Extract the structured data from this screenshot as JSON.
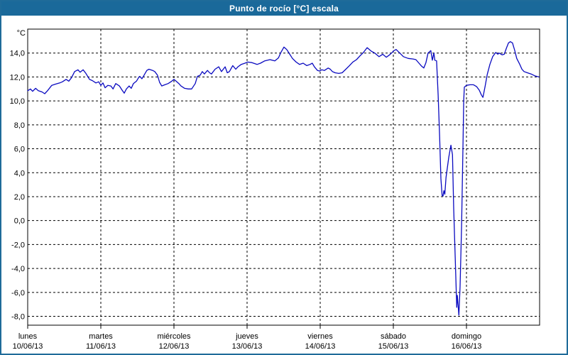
{
  "window": {
    "title": "Punto de rocío [°C] escala"
  },
  "colors": {
    "titlebar_bg": "#1a699a",
    "titlebar_text": "#ffffff",
    "frame": "#1f6b99",
    "plot_bg": "#ffffff",
    "grid": "#000000",
    "axis": "#000000",
    "line": "#0a0ac0",
    "label_text": "#000000"
  },
  "chart_data": {
    "type": "line",
    "title": "Punto de rocío [°C] escala",
    "y_unit_label": "°C",
    "ylabel": "Punto de rocío [°C]",
    "ylim": [
      -8.74,
      16
    ],
    "y_ticks": [
      14,
      12,
      10,
      8,
      6,
      4,
      2,
      0,
      -2,
      -4,
      -6,
      -8
    ],
    "y_tick_labels": [
      "14,0",
      "12,0",
      "10,0",
      "8,0",
      "6,0",
      "4,0",
      "2,0",
      "0,0",
      "-2,0",
      "-4,0",
      "-6,0",
      "-8,0"
    ],
    "grid": "dashed",
    "legend": "none",
    "x_axis": {
      "total_hours": 168,
      "x_unit": "hours_from_monday_00:00",
      "days": [
        {
          "name": "lunes",
          "date": "10/06/13"
        },
        {
          "name": "martes",
          "date": "11/06/13"
        },
        {
          "name": "miércoles",
          "date": "12/06/13"
        },
        {
          "name": "jueves",
          "date": "13/06/13"
        },
        {
          "name": "viernes",
          "date": "14/06/13"
        },
        {
          "name": "sábado",
          "date": "15/06/13"
        },
        {
          "name": "domingo",
          "date": "16/06/13"
        }
      ]
    },
    "series": [
      {
        "name": "Punto de rocío",
        "color": "#0a0ac0",
        "units": "°C",
        "points": [
          [
            0,
            10.85
          ],
          [
            0.9,
            11.0
          ],
          [
            1.6,
            10.8
          ],
          [
            2.6,
            11.05
          ],
          [
            3.5,
            10.85
          ],
          [
            4.7,
            10.75
          ],
          [
            5.6,
            10.6
          ],
          [
            6.5,
            10.85
          ],
          [
            7.9,
            11.3
          ],
          [
            9.1,
            11.4
          ],
          [
            10.5,
            11.5
          ],
          [
            11.4,
            11.6
          ],
          [
            12.6,
            11.8
          ],
          [
            13.5,
            11.65
          ],
          [
            14.4,
            11.95
          ],
          [
            15.4,
            12.45
          ],
          [
            16.5,
            12.6
          ],
          [
            17.2,
            12.4
          ],
          [
            18.2,
            12.6
          ],
          [
            19.1,
            12.3
          ],
          [
            20.3,
            11.8
          ],
          [
            21.2,
            11.7
          ],
          [
            22.4,
            11.5
          ],
          [
            23.3,
            11.6
          ],
          [
            24.0,
            11.3
          ],
          [
            24.7,
            11.5
          ],
          [
            25.4,
            11.1
          ],
          [
            26.3,
            11.3
          ],
          [
            27.3,
            11.25
          ],
          [
            28.0,
            11.0
          ],
          [
            28.9,
            11.45
          ],
          [
            30.1,
            11.25
          ],
          [
            31.0,
            10.9
          ],
          [
            31.7,
            10.65
          ],
          [
            32.4,
            11.0
          ],
          [
            33.3,
            11.25
          ],
          [
            34.0,
            11.05
          ],
          [
            34.7,
            11.45
          ],
          [
            35.7,
            11.65
          ],
          [
            36.4,
            11.95
          ],
          [
            36.8,
            12.05
          ],
          [
            37.5,
            11.85
          ],
          [
            38.2,
            12.15
          ],
          [
            39.1,
            12.55
          ],
          [
            39.8,
            12.65
          ],
          [
            41.0,
            12.55
          ],
          [
            41.7,
            12.45
          ],
          [
            42.6,
            12.15
          ],
          [
            43.3,
            11.55
          ],
          [
            44.0,
            11.25
          ],
          [
            45.0,
            11.35
          ],
          [
            46.1,
            11.45
          ],
          [
            47.3,
            11.65
          ],
          [
            48.0,
            11.8
          ],
          [
            48.7,
            11.65
          ],
          [
            49.6,
            11.45
          ],
          [
            50.3,
            11.25
          ],
          [
            51.5,
            11.05
          ],
          [
            52.7,
            11.0
          ],
          [
            53.8,
            11.0
          ],
          [
            55.0,
            11.45
          ],
          [
            55.7,
            12.05
          ],
          [
            56.6,
            12.15
          ],
          [
            57.3,
            12.45
          ],
          [
            58.0,
            12.25
          ],
          [
            59.0,
            12.55
          ],
          [
            59.7,
            12.35
          ],
          [
            60.3,
            12.25
          ],
          [
            61.5,
            12.65
          ],
          [
            62.7,
            12.85
          ],
          [
            63.6,
            12.45
          ],
          [
            64.8,
            12.85
          ],
          [
            65.5,
            12.35
          ],
          [
            66.2,
            12.45
          ],
          [
            67.3,
            12.95
          ],
          [
            68.3,
            12.65
          ],
          [
            69.0,
            12.85
          ],
          [
            70.1,
            13.05
          ],
          [
            71.3,
            13.15
          ],
          [
            72.2,
            13.25
          ],
          [
            73.6,
            13.2
          ],
          [
            75.3,
            13.05
          ],
          [
            76.4,
            13.15
          ],
          [
            77.8,
            13.35
          ],
          [
            79.5,
            13.45
          ],
          [
            81.1,
            13.35
          ],
          [
            82.3,
            13.6
          ],
          [
            83.0,
            14.0
          ],
          [
            84.1,
            14.5
          ],
          [
            85.0,
            14.3
          ],
          [
            86.0,
            13.9
          ],
          [
            86.9,
            13.55
          ],
          [
            88.1,
            13.25
          ],
          [
            89.2,
            13.05
          ],
          [
            90.4,
            13.15
          ],
          [
            91.6,
            12.95
          ],
          [
            92.7,
            13.05
          ],
          [
            93.4,
            13.15
          ],
          [
            94.1,
            12.85
          ],
          [
            95.1,
            12.55
          ],
          [
            95.8,
            12.5
          ],
          [
            96.5,
            12.6
          ],
          [
            97.4,
            12.55
          ],
          [
            98.6,
            12.75
          ],
          [
            99.3,
            12.65
          ],
          [
            100.0,
            12.45
          ],
          [
            100.9,
            12.35
          ],
          [
            102.1,
            12.3
          ],
          [
            103.2,
            12.35
          ],
          [
            104.4,
            12.65
          ],
          [
            105.6,
            12.95
          ],
          [
            106.7,
            13.25
          ],
          [
            107.9,
            13.45
          ],
          [
            109.0,
            13.75
          ],
          [
            110.2,
            14.05
          ],
          [
            111.4,
            14.45
          ],
          [
            112.8,
            14.15
          ],
          [
            113.9,
            14.0
          ],
          [
            115.3,
            13.7
          ],
          [
            116.5,
            13.9
          ],
          [
            117.7,
            13.65
          ],
          [
            118.8,
            13.85
          ],
          [
            120.2,
            14.2
          ],
          [
            120.9,
            14.3
          ],
          [
            122.1,
            14.0
          ],
          [
            123.3,
            13.7
          ],
          [
            124.9,
            13.55
          ],
          [
            126.5,
            13.5
          ],
          [
            127.4,
            13.45
          ],
          [
            128.4,
            13.15
          ],
          [
            129.3,
            12.9
          ],
          [
            130.0,
            12.75
          ],
          [
            130.7,
            13.2
          ],
          [
            131.4,
            14.0
          ],
          [
            132.3,
            14.2
          ],
          [
            132.8,
            13.4
          ],
          [
            133.3,
            14.0
          ],
          [
            133.6,
            13.4
          ],
          [
            134.2,
            13.35
          ],
          [
            134.7,
            10.5
          ],
          [
            135.2,
            7.0
          ],
          [
            135.6,
            3.5
          ],
          [
            136.0,
            2.1
          ],
          [
            136.3,
            2.05
          ],
          [
            136.6,
            2.5
          ],
          [
            136.9,
            2.2
          ],
          [
            137.3,
            3.6
          ],
          [
            138.2,
            5.3
          ],
          [
            138.9,
            6.3
          ],
          [
            139.4,
            5.5
          ],
          [
            139.8,
            1.0
          ],
          [
            140.3,
            -3.0
          ],
          [
            140.8,
            -7.25
          ],
          [
            141.0,
            -6.25
          ],
          [
            141.5,
            -7.9
          ],
          [
            141.9,
            -5.5
          ],
          [
            142.4,
            -0.5
          ],
          [
            142.9,
            7.0
          ],
          [
            143.1,
            10.0
          ],
          [
            143.3,
            11.15
          ],
          [
            144.0,
            11.3
          ],
          [
            145.2,
            11.35
          ],
          [
            146.3,
            11.35
          ],
          [
            147.3,
            11.2
          ],
          [
            148.2,
            10.9
          ],
          [
            148.9,
            10.5
          ],
          [
            149.4,
            10.3
          ],
          [
            150.1,
            11.2
          ],
          [
            150.8,
            12.2
          ],
          [
            151.7,
            13.05
          ],
          [
            152.6,
            13.7
          ],
          [
            153.6,
            14.05
          ],
          [
            154.3,
            13.9
          ],
          [
            154.7,
            14.0
          ],
          [
            155.7,
            13.85
          ],
          [
            156.4,
            13.9
          ],
          [
            157.1,
            14.4
          ],
          [
            157.8,
            14.85
          ],
          [
            158.4,
            14.95
          ],
          [
            159.1,
            14.85
          ],
          [
            159.8,
            14.25
          ],
          [
            160.5,
            13.55
          ],
          [
            161.5,
            13.05
          ],
          [
            162.2,
            12.65
          ],
          [
            162.9,
            12.45
          ],
          [
            164.0,
            12.35
          ],
          [
            165.2,
            12.25
          ],
          [
            166.4,
            12.1
          ],
          [
            167.8,
            12.0
          ]
        ]
      }
    ]
  }
}
